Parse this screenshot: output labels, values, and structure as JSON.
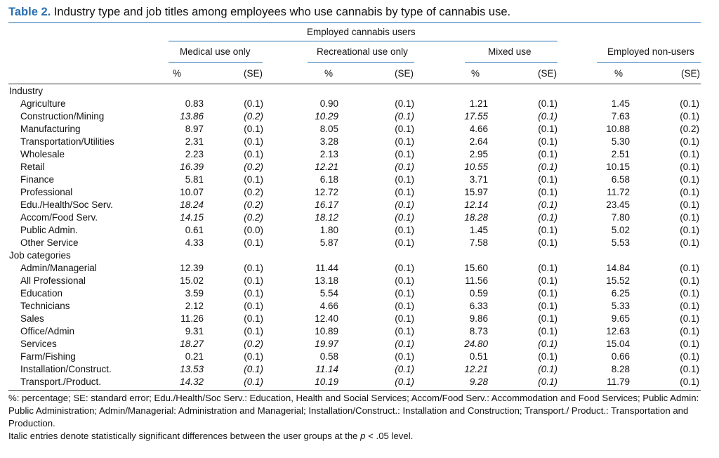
{
  "table": {
    "label": "Table 2.",
    "caption": "Industry type and job titles among employees who use cannabis by type of cannabis use.",
    "spanner": "Employed cannabis users",
    "groups": [
      "Medical use only",
      "Recreational use only",
      "Mixed use",
      "Employed non-users"
    ],
    "col_pct": "%",
    "col_se": "(SE)",
    "rows": [
      {
        "label": "Industry",
        "section": true
      },
      {
        "label": "Agriculture",
        "vals": [
          "0.83",
          "(0.1)",
          "0.90",
          "(0.1)",
          "1.21",
          "(0.1)",
          "1.45",
          "(0.1)"
        ],
        "italic": false
      },
      {
        "label": "Construction/Mining",
        "vals": [
          "13.86",
          "(0.2)",
          "10.29",
          "(0.1)",
          "17.55",
          "(0.1)",
          "7.63",
          "(0.1)"
        ],
        "italic": true
      },
      {
        "label": "Manufacturing",
        "vals": [
          "8.97",
          "(0.1)",
          "8.05",
          "(0.1)",
          "4.66",
          "(0.1)",
          "10.88",
          "(0.2)"
        ],
        "italic": false
      },
      {
        "label": "Transportation/Utilities",
        "vals": [
          "2.31",
          "(0.1)",
          "3.28",
          "(0.1)",
          "2.64",
          "(0.1)",
          "5.30",
          "(0.1)"
        ],
        "italic": false
      },
      {
        "label": "Wholesale",
        "vals": [
          "2.23",
          "(0.1)",
          "2.13",
          "(0.1)",
          "2.95",
          "(0.1)",
          "2.51",
          "(0.1)"
        ],
        "italic": false
      },
      {
        "label": "Retail",
        "vals": [
          "16.39",
          "(0.2)",
          "12.21",
          "(0.1)",
          "10.55",
          "(0.1)",
          "10.15",
          "(0.1)"
        ],
        "italic": true
      },
      {
        "label": "Finance",
        "vals": [
          "5.81",
          "(0.1)",
          "6.18",
          "(0.1)",
          "3.71",
          "(0.1)",
          "6.58",
          "(0.1)"
        ],
        "italic": false
      },
      {
        "label": "Professional",
        "vals": [
          "10.07",
          "(0.2)",
          "12.72",
          "(0.1)",
          "15.97",
          "(0.1)",
          "11.72",
          "(0.1)"
        ],
        "italic": false
      },
      {
        "label": "Edu./Health/Soc Serv.",
        "vals": [
          "18.24",
          "(0.2)",
          "16.17",
          "(0.1)",
          "12.14",
          "(0.1)",
          "23.45",
          "(0.1)"
        ],
        "italic": true
      },
      {
        "label": "Accom/Food Serv.",
        "vals": [
          "14.15",
          "(0.2)",
          "18.12",
          "(0.1)",
          "18.28",
          "(0.1)",
          "7.80",
          "(0.1)"
        ],
        "italic": true
      },
      {
        "label": "Public Admin.",
        "vals": [
          "0.61",
          "(0.0)",
          "1.80",
          "(0.1)",
          "1.45",
          "(0.1)",
          "5.02",
          "(0.1)"
        ],
        "italic": false
      },
      {
        "label": "Other Service",
        "vals": [
          "4.33",
          "(0.1)",
          "5.87",
          "(0.1)",
          "7.58",
          "(0.1)",
          "5.53",
          "(0.1)"
        ],
        "italic": false
      },
      {
        "label": "Job categories",
        "section": true
      },
      {
        "label": "Admin/Managerial",
        "vals": [
          "12.39",
          "(0.1)",
          "11.44",
          "(0.1)",
          "15.60",
          "(0.1)",
          "14.84",
          "(0.1)"
        ],
        "italic": false
      },
      {
        "label": "All Professional",
        "vals": [
          "15.02",
          "(0.1)",
          "13.18",
          "(0.1)",
          "11.56",
          "(0.1)",
          "15.52",
          "(0.1)"
        ],
        "italic": false
      },
      {
        "label": "Education",
        "vals": [
          "3.59",
          "(0.1)",
          "5.54",
          "(0.1)",
          "0.59",
          "(0.1)",
          "6.25",
          "(0.1)"
        ],
        "italic": false
      },
      {
        "label": "Technicians",
        "vals": [
          "2.12",
          "(0.1)",
          "4.66",
          "(0.1)",
          "6.33",
          "(0.1)",
          "5.33",
          "(0.1)"
        ],
        "italic": false
      },
      {
        "label": "Sales",
        "vals": [
          "11.26",
          "(0.1)",
          "12.40",
          "(0.1)",
          "9.86",
          "(0.1)",
          "9.65",
          "(0.1)"
        ],
        "italic": false
      },
      {
        "label": "Office/Admin",
        "vals": [
          "9.31",
          "(0.1)",
          "10.89",
          "(0.1)",
          "8.73",
          "(0.1)",
          "12.63",
          "(0.1)"
        ],
        "italic": false
      },
      {
        "label": "Services",
        "vals": [
          "18.27",
          "(0.2)",
          "19.97",
          "(0.1)",
          "24.80",
          "(0.1)",
          "15.04",
          "(0.1)"
        ],
        "italic": true
      },
      {
        "label": "Farm/Fishing",
        "vals": [
          "0.21",
          "(0.1)",
          "0.58",
          "(0.1)",
          "0.51",
          "(0.1)",
          "0.66",
          "(0.1)"
        ],
        "italic": false
      },
      {
        "label": "Installation/Construct.",
        "vals": [
          "13.53",
          "(0.1)",
          "11.14",
          "(0.1)",
          "12.21",
          "(0.1)",
          "8.28",
          "(0.1)"
        ],
        "italic": true
      },
      {
        "label": "Transport./Product.",
        "vals": [
          "14.32",
          "(0.1)",
          "10.19",
          "(0.1)",
          "9.28",
          "(0.1)",
          "11.79",
          "(0.1)"
        ],
        "italic": true
      }
    ],
    "footnote_abbrev": "%: percentage; SE: standard error; Edu./Health/Soc Serv.: Education, Health and Social Services; Accom/Food Serv.: Accommodation and Food Services; Public Admin: Public Administration; Admin/Managerial: Administration and Managerial; Installation/Construct.: Installation and Construction; Transport./ Product.: Transportation and Production.",
    "footnote_italic_pre": "Italic entries denote statistically significant differences between the user groups at the ",
    "footnote_italic_p": "p",
    "footnote_italic_post": " < .05 level.",
    "colors": {
      "accent": "#2a6fb0",
      "text": "#111111"
    }
  }
}
